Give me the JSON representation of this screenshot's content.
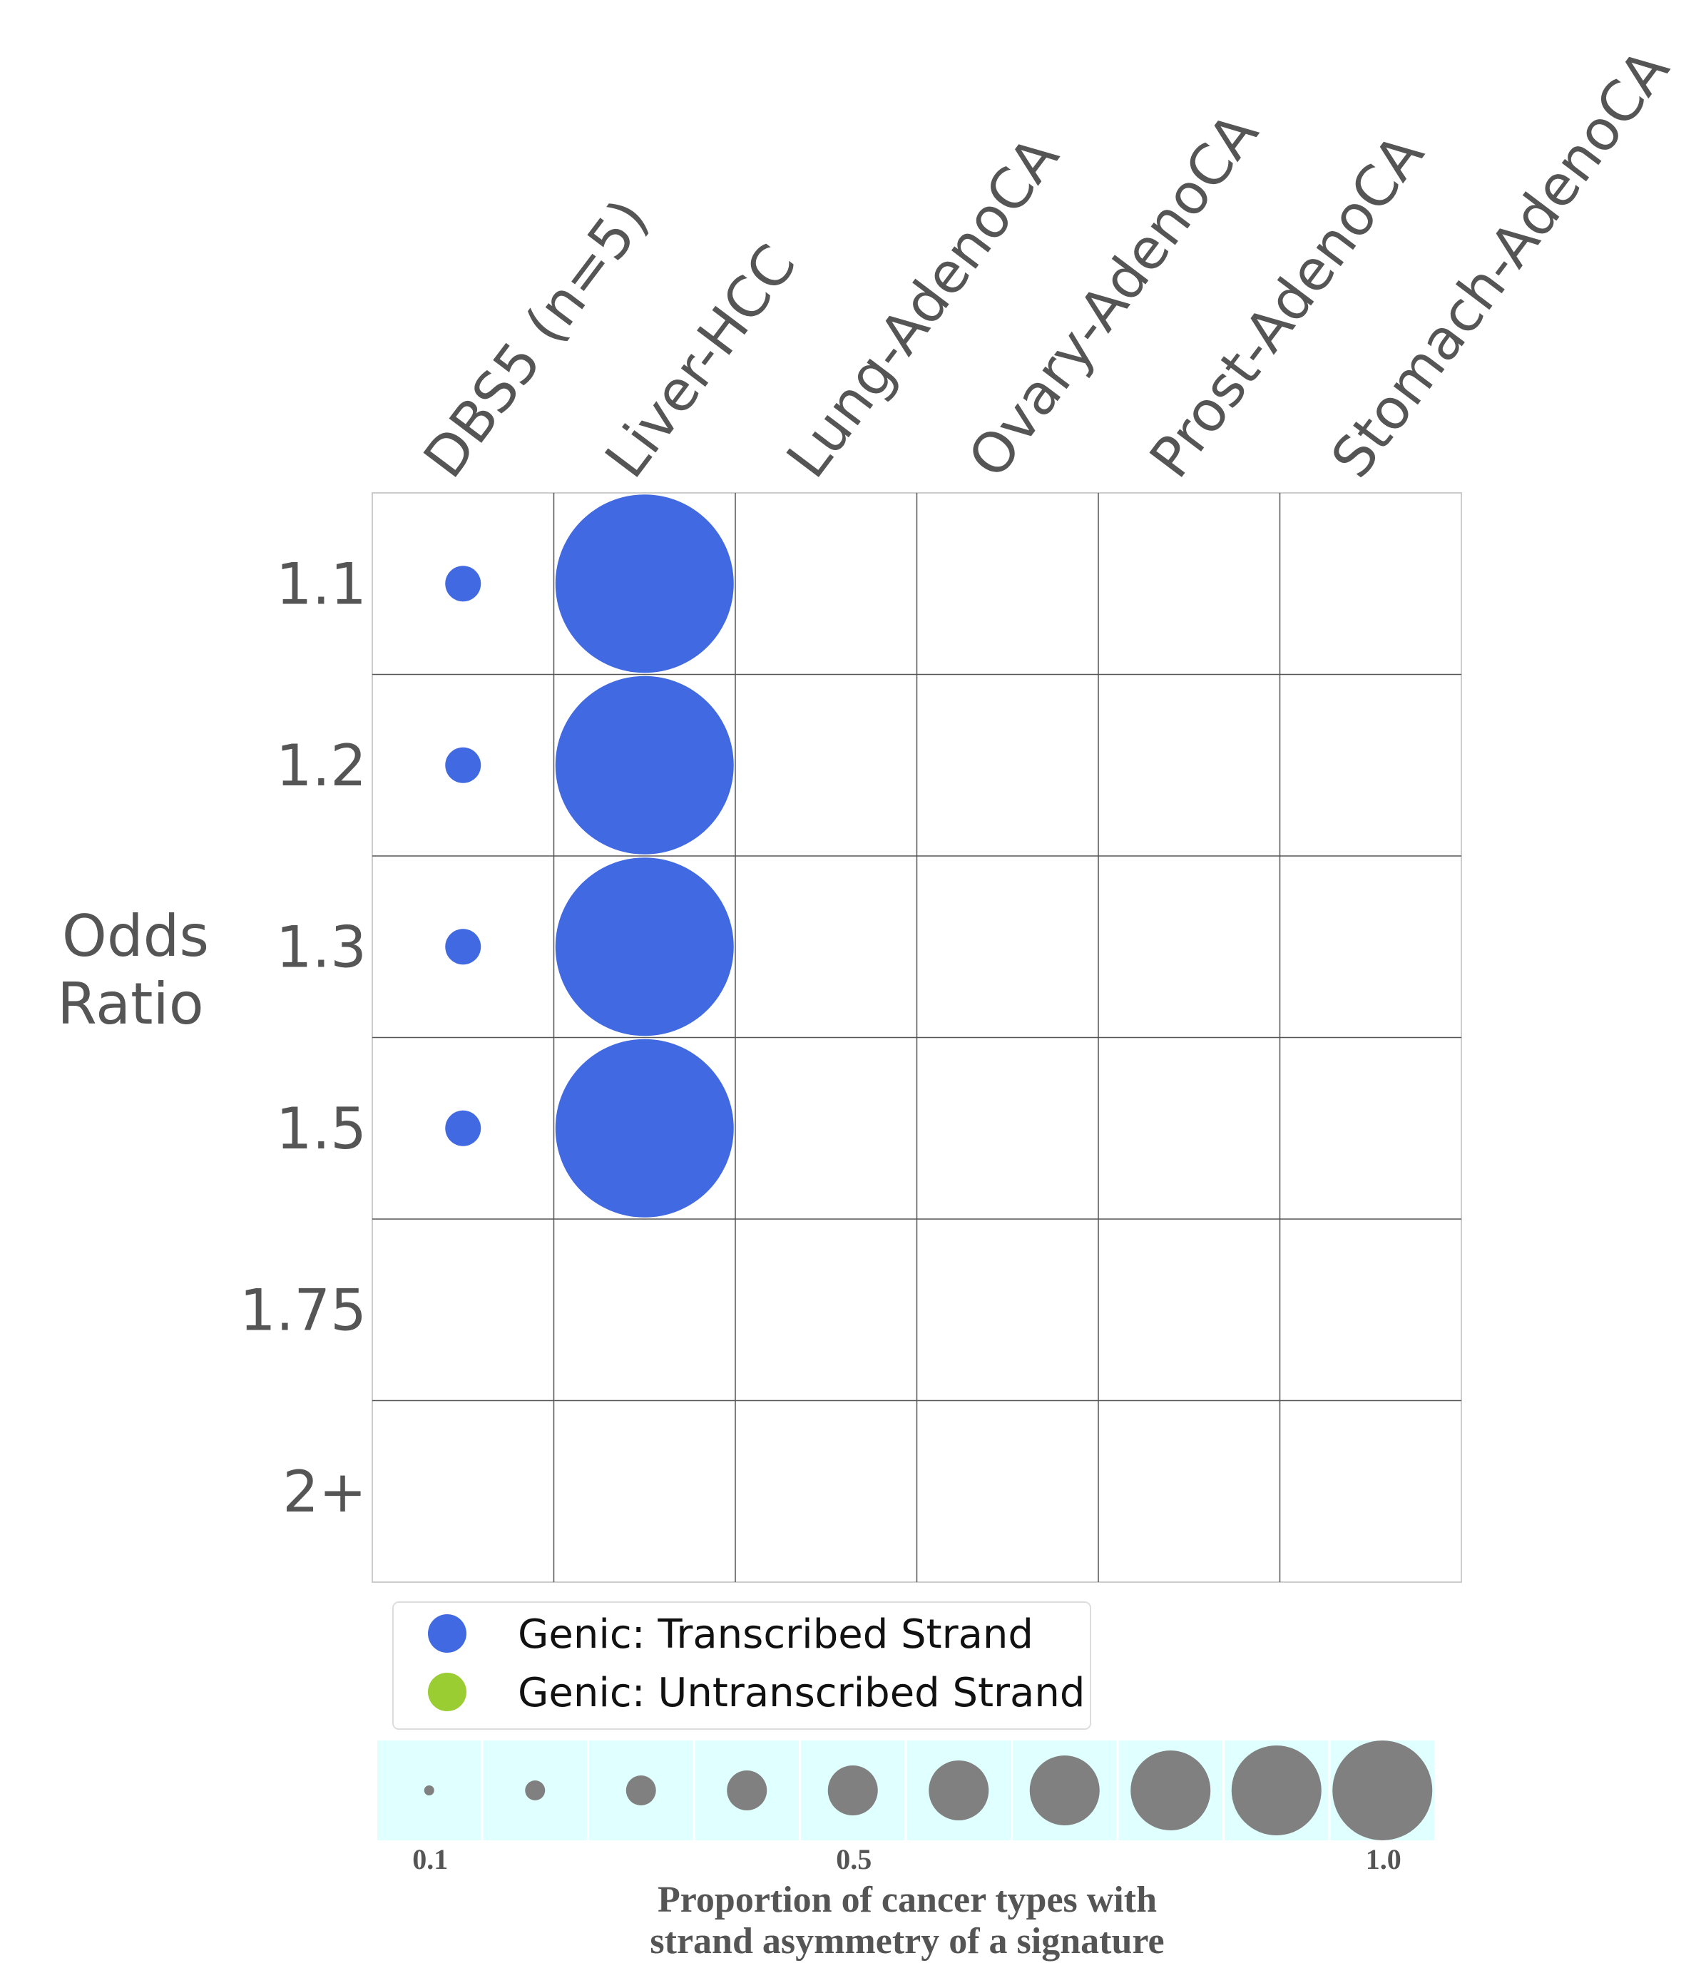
{
  "chart_data": {
    "type": "bubble-grid",
    "columns": [
      "DBS5 (n=5)",
      "Liver-HCC",
      "Lung-AdenoCA",
      "Ovary-AdenoCA",
      "Prost-AdenoCA",
      "Stomach-AdenoCA"
    ],
    "rows": [
      "1.1",
      "1.2",
      "1.3",
      "1.5",
      "1.75",
      "2+"
    ],
    "ylabel_lines": [
      "Odds",
      "Ratio"
    ],
    "points": [
      {
        "column": "DBS5 (n=5)",
        "row": "1.1",
        "proportion": 0.2,
        "strand": "transcribed"
      },
      {
        "column": "DBS5 (n=5)",
        "row": "1.2",
        "proportion": 0.2,
        "strand": "transcribed"
      },
      {
        "column": "DBS5 (n=5)",
        "row": "1.3",
        "proportion": 0.2,
        "strand": "transcribed"
      },
      {
        "column": "DBS5 (n=5)",
        "row": "1.5",
        "proportion": 0.2,
        "strand": "transcribed"
      },
      {
        "column": "Liver-HCC",
        "row": "1.1",
        "proportion": 1.0,
        "strand": "transcribed"
      },
      {
        "column": "Liver-HCC",
        "row": "1.2",
        "proportion": 1.0,
        "strand": "transcribed"
      },
      {
        "column": "Liver-HCC",
        "row": "1.3",
        "proportion": 1.0,
        "strand": "transcribed"
      },
      {
        "column": "Liver-HCC",
        "row": "1.5",
        "proportion": 1.0,
        "strand": "transcribed"
      }
    ],
    "legend": [
      {
        "key": "transcribed",
        "label": "Genic: Transcribed Strand",
        "color": "#4169E1"
      },
      {
        "key": "untranscribed",
        "label": "Genic: Untranscribed Strand",
        "color": "#9ACD32"
      }
    ],
    "size_legend": {
      "values": [
        0.1,
        0.2,
        0.3,
        0.4,
        0.5,
        0.6,
        0.7,
        0.8,
        0.9,
        1.0
      ],
      "tick_labels": [
        {
          "value": 0.1,
          "label": "0.1"
        },
        {
          "value": 0.5,
          "label": "0.5"
        },
        {
          "value": 1.0,
          "label": "1.0"
        }
      ],
      "title_lines": [
        "Proportion of cancer types with",
        "strand asymmetry of a signature"
      ],
      "background": "#E0FFFF",
      "marker_color": "#808080"
    }
  }
}
